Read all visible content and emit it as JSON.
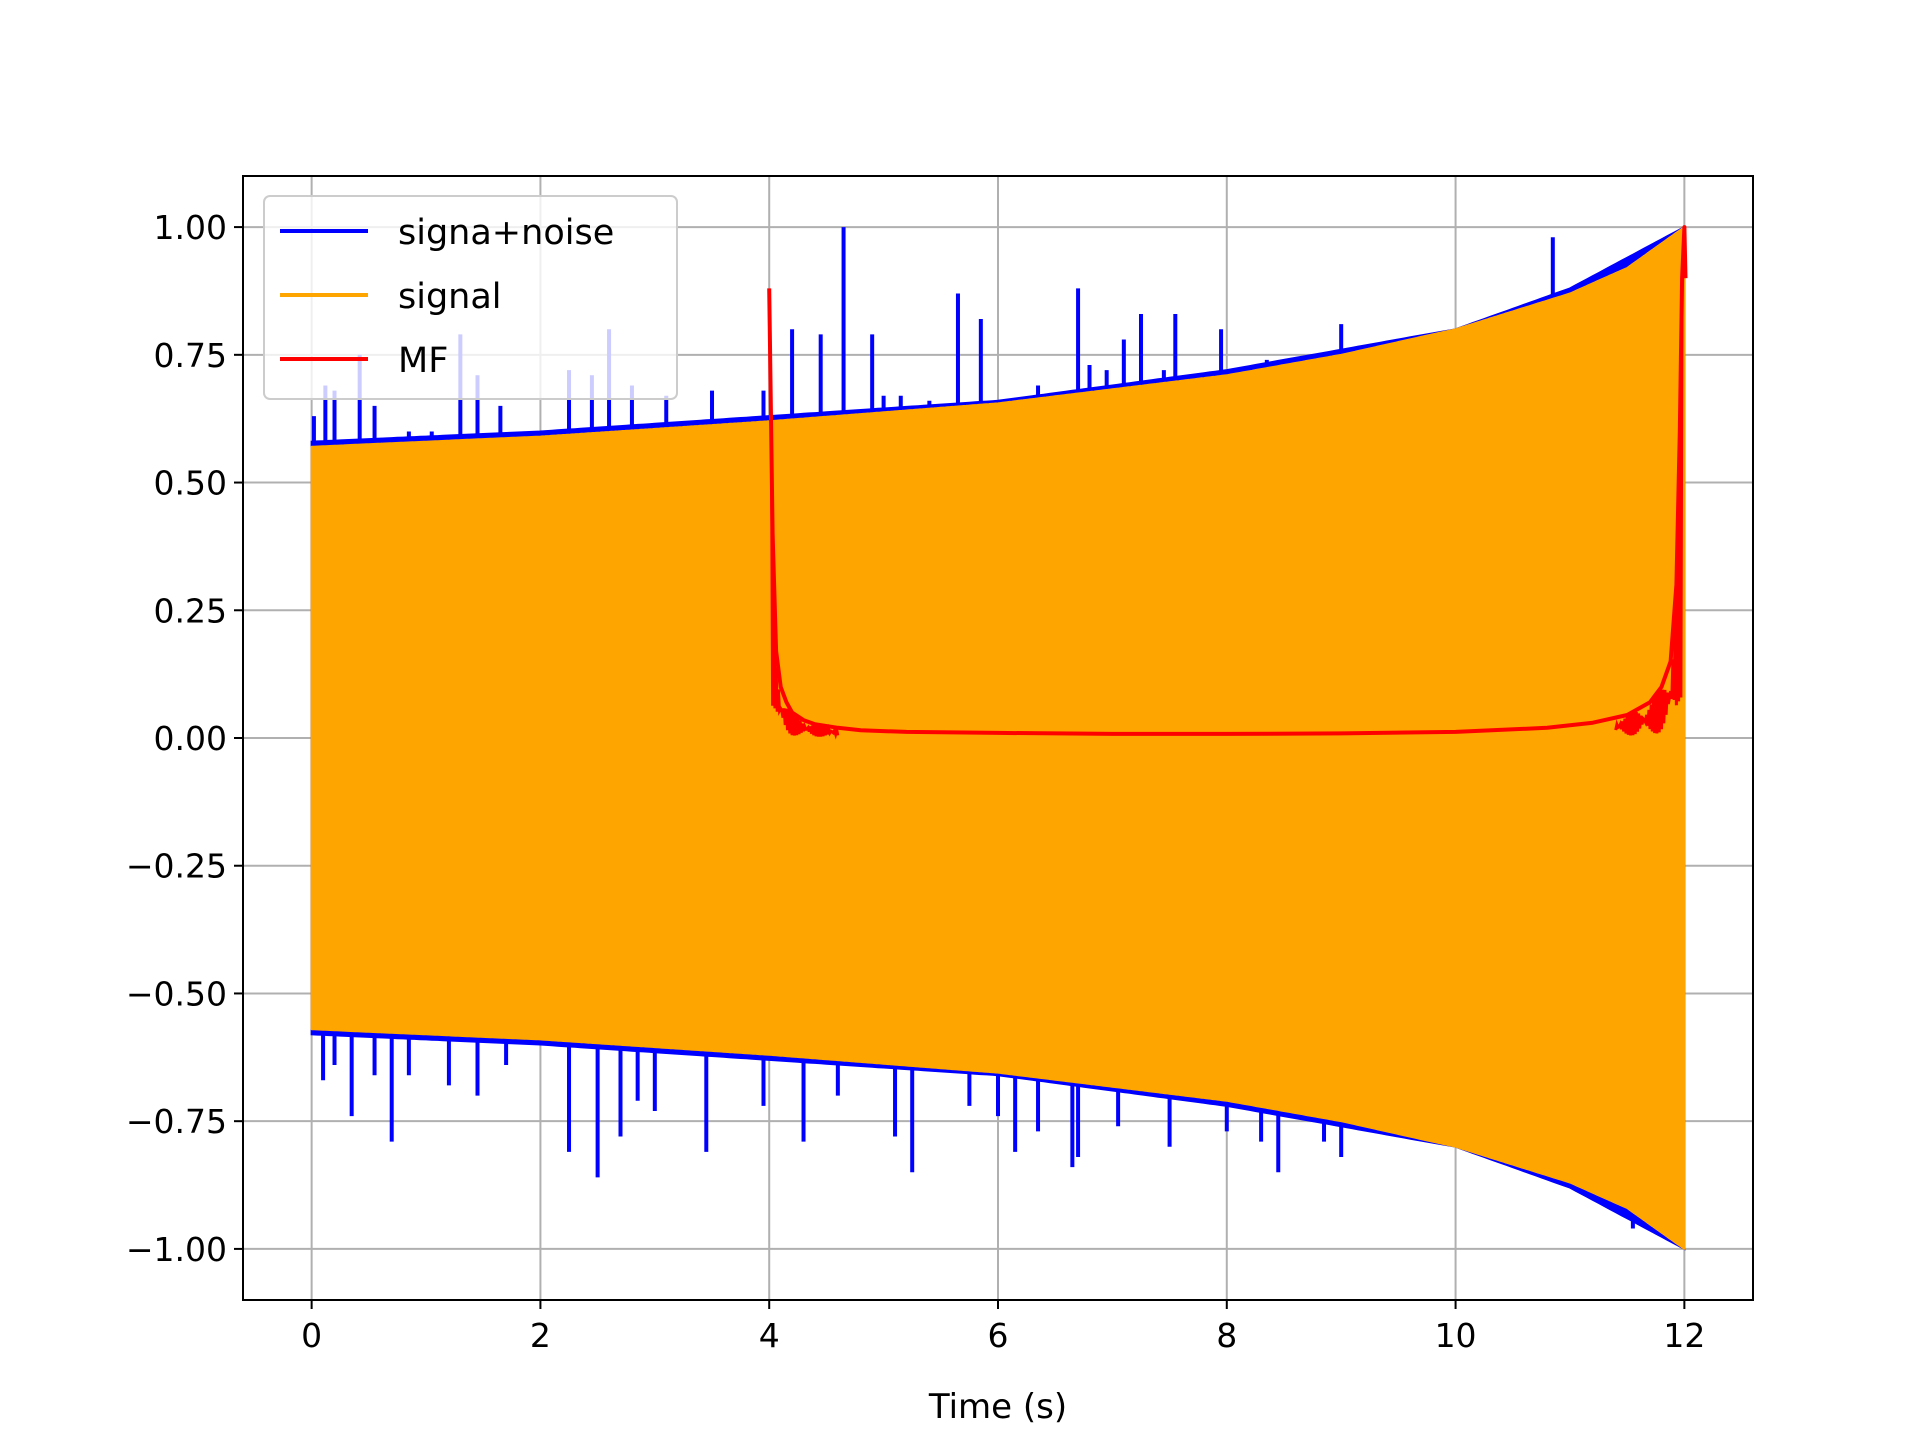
{
  "chart_data": {
    "type": "line",
    "title": "",
    "xlabel": "Time (s)",
    "ylabel": "",
    "xlim": [
      -0.6,
      12.6
    ],
    "ylim": [
      -1.1,
      1.1
    ],
    "grid": true,
    "legend_position": "top-left",
    "x_ticks": [
      0,
      2,
      4,
      6,
      8,
      10,
      12
    ],
    "x_tick_labels": [
      "0",
      "2",
      "4",
      "6",
      "8",
      "10",
      "12"
    ],
    "y_ticks": [
      1.0,
      0.75,
      0.5,
      0.25,
      0.0,
      -0.25,
      -0.5,
      -0.75,
      -1.0
    ],
    "y_tick_labels": [
      "1.00",
      "0.75",
      "0.50",
      "0.25",
      "0.00",
      "−0.25",
      "−0.50",
      "−0.75",
      "−1.00"
    ],
    "series": [
      {
        "name": "signa+noise",
        "color": "#0000ff",
        "envelope_upper": [
          [
            0,
            0.58
          ],
          [
            2,
            0.6
          ],
          [
            4,
            0.63
          ],
          [
            6,
            0.66
          ],
          [
            8,
            0.72
          ],
          [
            10,
            0.8
          ],
          [
            11,
            0.88
          ],
          [
            12,
            1.0
          ]
        ],
        "envelope_lower": [
          [
            0,
            -0.58
          ],
          [
            2,
            -0.6
          ],
          [
            4,
            -0.63
          ],
          [
            6,
            -0.66
          ],
          [
            8,
            -0.72
          ],
          [
            10,
            -0.8
          ],
          [
            11,
            -0.88
          ],
          [
            12,
            -1.0
          ]
        ],
        "noise_spikes": [
          [
            0.02,
            0.63
          ],
          [
            0.12,
            0.69
          ],
          [
            0.2,
            0.68
          ],
          [
            0.42,
            0.75
          ],
          [
            0.55,
            0.65
          ],
          [
            0.85,
            0.6
          ],
          [
            1.05,
            0.6
          ],
          [
            1.3,
            0.79
          ],
          [
            1.45,
            0.71
          ],
          [
            1.65,
            0.65
          ],
          [
            2.25,
            0.72
          ],
          [
            2.45,
            0.71
          ],
          [
            2.6,
            0.8
          ],
          [
            2.8,
            0.69
          ],
          [
            3.1,
            0.67
          ],
          [
            3.5,
            0.68
          ],
          [
            3.95,
            0.68
          ],
          [
            4.2,
            0.8
          ],
          [
            4.45,
            0.79
          ],
          [
            4.65,
            1.0
          ],
          [
            4.9,
            0.79
          ],
          [
            5.0,
            0.67
          ],
          [
            5.15,
            0.67
          ],
          [
            5.4,
            0.66
          ],
          [
            5.65,
            0.87
          ],
          [
            5.85,
            0.82
          ],
          [
            6.15,
            0.65
          ],
          [
            6.35,
            0.69
          ],
          [
            6.7,
            0.88
          ],
          [
            6.8,
            0.73
          ],
          [
            6.95,
            0.72
          ],
          [
            7.1,
            0.78
          ],
          [
            7.25,
            0.83
          ],
          [
            7.45,
            0.72
          ],
          [
            7.55,
            0.83
          ],
          [
            7.95,
            0.8
          ],
          [
            8.35,
            0.74
          ],
          [
            8.55,
            0.73
          ],
          [
            8.85,
            0.72
          ],
          [
            9.0,
            0.81
          ],
          [
            10.85,
            0.98
          ],
          [
            0.1,
            -0.67
          ],
          [
            0.2,
            -0.64
          ],
          [
            0.35,
            -0.74
          ],
          [
            0.55,
            -0.66
          ],
          [
            0.7,
            -0.79
          ],
          [
            0.85,
            -0.66
          ],
          [
            1.2,
            -0.68
          ],
          [
            1.45,
            -0.7
          ],
          [
            1.7,
            -0.64
          ],
          [
            2.25,
            -0.81
          ],
          [
            2.5,
            -0.86
          ],
          [
            2.7,
            -0.78
          ],
          [
            2.85,
            -0.71
          ],
          [
            3.0,
            -0.73
          ],
          [
            3.45,
            -0.81
          ],
          [
            3.95,
            -0.72
          ],
          [
            4.3,
            -0.79
          ],
          [
            4.6,
            -0.7
          ],
          [
            5.1,
            -0.78
          ],
          [
            5.25,
            -0.85
          ],
          [
            5.75,
            -0.72
          ],
          [
            6.0,
            -0.74
          ],
          [
            6.15,
            -0.81
          ],
          [
            6.35,
            -0.77
          ],
          [
            6.65,
            -0.84
          ],
          [
            6.7,
            -0.82
          ],
          [
            7.05,
            -0.76
          ],
          [
            7.5,
            -0.8
          ],
          [
            8.0,
            -0.77
          ],
          [
            8.3,
            -0.79
          ],
          [
            8.45,
            -0.85
          ],
          [
            8.85,
            -0.79
          ],
          [
            9.0,
            -0.82
          ],
          [
            11.55,
            -0.96
          ]
        ]
      },
      {
        "name": "signal",
        "color": "#ffa500",
        "envelope_upper": [
          [
            0,
            0.57
          ],
          [
            2,
            0.59
          ],
          [
            4,
            0.62
          ],
          [
            6,
            0.655
          ],
          [
            8,
            0.71
          ],
          [
            9,
            0.75
          ],
          [
            10,
            0.8
          ],
          [
            11,
            0.87
          ],
          [
            11.5,
            0.92
          ],
          [
            12,
            1.0
          ]
        ],
        "envelope_lower": [
          [
            0,
            -0.57
          ],
          [
            2,
            -0.59
          ],
          [
            4,
            -0.62
          ],
          [
            6,
            -0.655
          ],
          [
            8,
            -0.71
          ],
          [
            9,
            -0.75
          ],
          [
            10,
            -0.8
          ],
          [
            11,
            -0.87
          ],
          [
            11.5,
            -0.92
          ],
          [
            12,
            -1.0
          ]
        ]
      },
      {
        "name": "MF",
        "color": "#ff0000",
        "x": [
          4.0,
          4.03,
          4.06,
          4.1,
          4.15,
          4.2,
          4.3,
          4.4,
          4.6,
          4.8,
          5.2,
          6.0,
          7.0,
          8.0,
          9.0,
          10.0,
          10.8,
          11.2,
          11.5,
          11.7,
          11.8,
          11.88,
          11.93,
          11.96,
          11.98,
          12.0,
          12.01
        ],
        "y": [
          0.88,
          0.4,
          0.17,
          0.1,
          0.07,
          0.05,
          0.035,
          0.027,
          0.02,
          0.015,
          0.012,
          0.01,
          0.008,
          0.008,
          0.009,
          0.012,
          0.02,
          0.03,
          0.045,
          0.07,
          0.1,
          0.15,
          0.3,
          0.6,
          0.9,
          1.0,
          0.9
        ]
      }
    ]
  }
}
